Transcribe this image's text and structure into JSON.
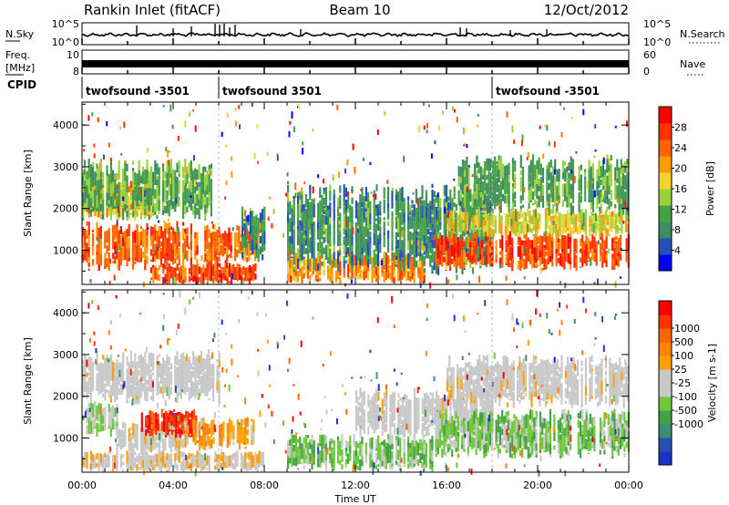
{
  "header": {
    "station": "Rankin Inlet (fitACF)",
    "beam": "Beam 10",
    "date": "12/Oct/2012"
  },
  "noise_panel": {
    "left_label": "N.Sky",
    "right_label": "N.Search",
    "left_ticks": [
      "10^5",
      "10^0"
    ],
    "right_ticks": [
      "10^5",
      "10^0"
    ]
  },
  "freq_panel": {
    "left_label_top": "Freq.",
    "left_label_unit": "[MHz]",
    "right_label": "Nave",
    "left_ticks": [
      "10",
      "8"
    ],
    "right_ticks": [
      "60",
      "0"
    ]
  },
  "cpid_panel": {
    "label": "CPID",
    "segments": [
      {
        "name": "twofsound -3501",
        "start_hour": 0
      },
      {
        "name": "twofsound 3501",
        "start_hour": 6
      },
      {
        "name": "twofsound -3501",
        "start_hour": 18
      }
    ]
  },
  "power_colorbar": {
    "label": "Power [dB]",
    "colors": [
      "#0000ff",
      "#2850b4",
      "#3c8c64",
      "#46a046",
      "#9bd23c",
      "#f0d232",
      "#ff9b00",
      "#ff6400",
      "#ff3200",
      "#ff0000"
    ],
    "ticks": [
      "4",
      "8",
      "12",
      "16",
      "20",
      "24",
      "28"
    ]
  },
  "velocity_colorbar": {
    "label": "Velocity [m s-1]",
    "colors": [
      "#1e32c8",
      "#2850b4",
      "#3c8c78",
      "#46a046",
      "#6ec83c",
      "#c8c8c8",
      "#c8c8c8",
      "#ffa000",
      "#ff8200",
      "#ff6400",
      "#ff3200",
      "#ff0000"
    ],
    "ticks": [
      "1000",
      "500",
      "100",
      "25",
      "-25",
      "-100",
      "-500",
      "-1000"
    ]
  },
  "axes": {
    "ylabel": "Slant Range [km]",
    "xlabel": "Time UT",
    "yticks": [
      "1000",
      "2000",
      "3000",
      "4000"
    ],
    "xticks": [
      "00:00",
      "04:00",
      "08:00",
      "12:00",
      "16:00",
      "20:00",
      "00:00"
    ]
  },
  "chart_data": [
    {
      "type": "heatmap",
      "name": "Power",
      "xlabel": "Time UT",
      "ylabel": "Slant Range [km]",
      "xlim": [
        0,
        24
      ],
      "ylim": [
        180,
        4550
      ],
      "cbar_label": "Power [dB]",
      "cbar_range": [
        0,
        32
      ],
      "regions": [
        {
          "t": [
            0.0,
            5.9
          ],
          "r": [
            500,
            1700
          ],
          "level": 25
        },
        {
          "t": [
            0.0,
            3.0
          ],
          "r": [
            1700,
            2700
          ],
          "level": 20
        },
        {
          "t": [
            0.0,
            5.8
          ],
          "r": [
            1700,
            3200
          ],
          "level": 11
        },
        {
          "t": [
            3.0,
            7.6
          ],
          "r": [
            180,
            700
          ],
          "level": 26
        },
        {
          "t": [
            5.8,
            7.7
          ],
          "r": [
            700,
            1600
          ],
          "level": 25
        },
        {
          "t": [
            7.0,
            8.0
          ],
          "r": [
            700,
            2100
          ],
          "level": 9
        },
        {
          "t": [
            9.0,
            15.0
          ],
          "r": [
            200,
            950
          ],
          "level": 22
        },
        {
          "t": [
            9.0,
            18.0
          ],
          "r": [
            400,
            2600
          ],
          "level": 9
        },
        {
          "t": [
            15.5,
            24.0
          ],
          "r": [
            500,
            1450
          ],
          "level": 26
        },
        {
          "t": [
            16.0,
            24.0
          ],
          "r": [
            1300,
            2000
          ],
          "level": 17
        },
        {
          "t": [
            16.5,
            24.0
          ],
          "r": [
            1800,
            3300
          ],
          "level": 11
        }
      ]
    },
    {
      "type": "heatmap",
      "name": "Velocity",
      "xlabel": "Time UT",
      "ylabel": "Slant Range [km]",
      "xlim": [
        0,
        24
      ],
      "ylim": [
        180,
        4550
      ],
      "cbar_label": "Velocity [m s-1]",
      "cbar_range": [
        -1000,
        1000
      ],
      "regions": [
        {
          "t": [
            0.0,
            1.5
          ],
          "r": [
            1000,
            1900
          ],
          "level": -150
        },
        {
          "t": [
            1.5,
            4.5
          ],
          "r": [
            600,
            1400
          ],
          "level": 60
        },
        {
          "t": [
            2.5,
            5.0
          ],
          "r": [
            1000,
            1700
          ],
          "level": 800
        },
        {
          "t": [
            4.5,
            7.5
          ],
          "r": [
            700,
            1500
          ],
          "level": 300
        },
        {
          "t": [
            0.0,
            6.0
          ],
          "r": [
            1800,
            3100
          ],
          "level": 0
        },
        {
          "t": [
            0.0,
            8.0
          ],
          "r": [
            180,
            700
          ],
          "level": 120
        },
        {
          "t": [
            9.0,
            15.5
          ],
          "r": [
            180,
            1100
          ],
          "level": -250
        },
        {
          "t": [
            12.0,
            18.0
          ],
          "r": [
            1000,
            2200
          ],
          "level": 10
        },
        {
          "t": [
            15.5,
            24.0
          ],
          "r": [
            500,
            1700
          ],
          "level": -250
        },
        {
          "t": [
            16.0,
            24.0
          ],
          "r": [
            1700,
            3000
          ],
          "level": 20
        }
      ]
    }
  ]
}
